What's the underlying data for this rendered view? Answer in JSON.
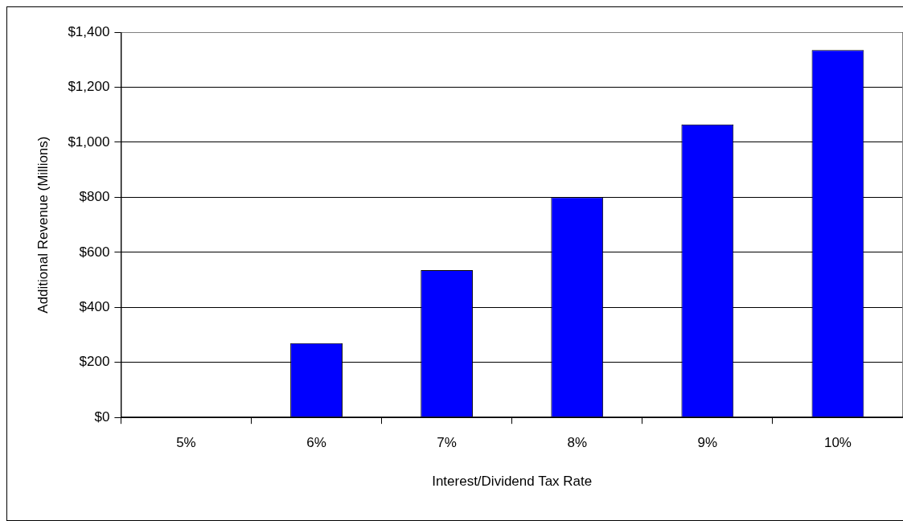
{
  "chart_data": {
    "type": "bar",
    "xlabel": "Interest/Dividend Tax Rate",
    "ylabel": "Additional Revenue (Millions)",
    "categories": [
      "5%",
      "6%",
      "7%",
      "8%",
      "9%",
      "10%"
    ],
    "values": [
      0,
      270,
      535,
      800,
      1065,
      1335
    ],
    "color": "#0000ff",
    "ylim": [
      0,
      1400
    ],
    "yticks": [
      {
        "value": 0,
        "label": "$0"
      },
      {
        "value": 200,
        "label": "$200"
      },
      {
        "value": 400,
        "label": "$400"
      },
      {
        "value": 600,
        "label": "$600"
      },
      {
        "value": 800,
        "label": "$800"
      },
      {
        "value": 1000,
        "label": "$1,000"
      },
      {
        "value": 1200,
        "label": "$1,200"
      },
      {
        "value": 1400,
        "label": "$1,400"
      }
    ],
    "grid": "y",
    "legend": false
  }
}
